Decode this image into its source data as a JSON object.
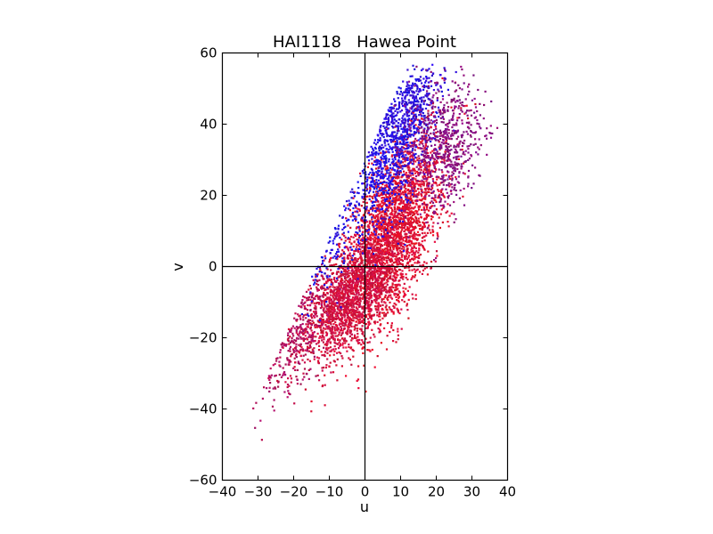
{
  "chart_data": {
    "type": "scatter",
    "title": "HAI1118   Hawea Point",
    "xlabel": "u",
    "ylabel": "v",
    "xlim": [
      -40,
      40
    ],
    "ylim": [
      -60,
      60
    ],
    "xticks": [
      "−40",
      "−30",
      "−20",
      "−10",
      "0",
      "10",
      "20",
      "30",
      "40"
    ],
    "yticks": [
      "−60",
      "−40",
      "−20",
      "0",
      "20",
      "40",
      "60"
    ],
    "zero_lines": true,
    "grid": false,
    "legend": "none",
    "color_gradient": {
      "from": "#0000ff",
      "to": "#ff0000"
    },
    "clusters": [
      {
        "cx": 8,
        "cy": 10,
        "su": 7,
        "sv": 14,
        "corr": 0.55,
        "color": "#e01030",
        "n": 2600
      },
      {
        "cx": -5,
        "cy": -9,
        "su": 7,
        "sv": 9,
        "corr": 0.6,
        "color": "#d01040",
        "n": 1700
      },
      {
        "cx": 6,
        "cy": 30,
        "su": 6,
        "sv": 11,
        "corr": 0.55,
        "color": "#2010e8",
        "n": 800
      },
      {
        "cx": 12,
        "cy": 44,
        "su": 5,
        "sv": 6,
        "corr": 0.5,
        "color": "#3010d8",
        "n": 380
      },
      {
        "cx": 22,
        "cy": 34,
        "su": 6,
        "sv": 10,
        "corr": 0.2,
        "color": "#8a1080",
        "n": 700
      },
      {
        "cx": -20,
        "cy": -20,
        "su": 5,
        "sv": 9,
        "corr": 0.6,
        "color": "#b01060",
        "n": 360
      },
      {
        "cx": -12,
        "cy": 8,
        "su": 5,
        "sv": 9,
        "corr": 0.5,
        "color": "#2010e0",
        "n": 320
      }
    ]
  }
}
